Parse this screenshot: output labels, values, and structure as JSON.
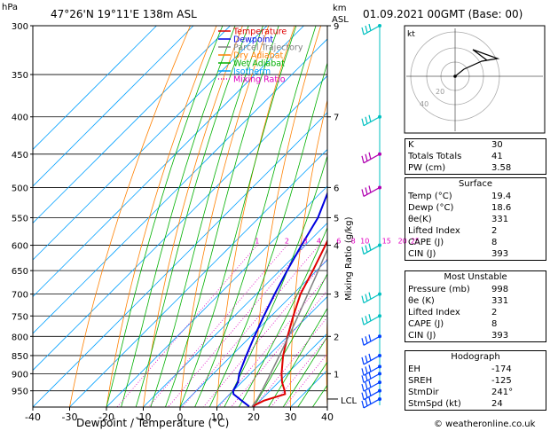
{
  "header": {
    "hpa_label": "hPa",
    "location": "47°26'N  19°11'E  138m  ASL",
    "km_label": "km",
    "asl_label": "ASL",
    "datetime": "01.09.2021  00GMT  (Base: 00)"
  },
  "legend": [
    {
      "label": "Temperature",
      "color": "#e00000",
      "style": "solid"
    },
    {
      "label": "Dewpoint",
      "color": "#0000e0",
      "style": "solid"
    },
    {
      "label": "Parcel Trajectory",
      "color": "#808080",
      "style": "solid"
    },
    {
      "label": "Dry Adiabat",
      "color": "#ff8000",
      "style": "solid"
    },
    {
      "label": "Wet Adiabat",
      "color": "#00b000",
      "style": "solid"
    },
    {
      "label": "Isotherm",
      "color": "#00a0ff",
      "style": "solid"
    },
    {
      "label": "Mixing Ratio",
      "color": "#e000c0",
      "style": "dotted"
    }
  ],
  "chart_data": {
    "type": "line",
    "title": "",
    "xlabel": "Dewpoint / Temperature (°C)",
    "ylabel": "",
    "right_axis_label": "Mixing Ratio (g/kg)",
    "xlim": [
      -40,
      40
    ],
    "x_ticks": [
      "-40",
      "-30",
      "-20",
      "-10",
      "0",
      "10",
      "20",
      "30",
      "40"
    ],
    "pressure_levels": [
      "300",
      "350",
      "400",
      "450",
      "500",
      "550",
      "600",
      "650",
      "700",
      "750",
      "800",
      "850",
      "900",
      "950"
    ],
    "km_ticks": [
      {
        "p": 300,
        "label": "9"
      },
      {
        "p": 400,
        "label": "7"
      },
      {
        "p": 500,
        "label": "6"
      },
      {
        "p": 550,
        "label": "5"
      },
      {
        "p": 600,
        "label": "4"
      },
      {
        "p": 700,
        "label": "3"
      },
      {
        "p": 800,
        "label": "2"
      },
      {
        "p": 900,
        "label": "1"
      }
    ],
    "lcl_label": "LCL",
    "lcl_pressure": 975,
    "mixing_ratio_labels": [
      "1",
      "2",
      "3",
      "4",
      "6",
      "8",
      "10",
      "15",
      "20",
      "25"
    ],
    "series": [
      {
        "name": "Temperature",
        "color": "#e00000",
        "points": [
          [
            998,
            19.4
          ],
          [
            980,
            21
          ],
          [
            960,
            25
          ],
          [
            950,
            24
          ],
          [
            925,
            21
          ],
          [
            900,
            18.5
          ],
          [
            850,
            14
          ],
          [
            800,
            10
          ],
          [
            750,
            6
          ],
          [
            700,
            2
          ],
          [
            650,
            -1
          ],
          [
            600,
            -4.5
          ],
          [
            550,
            -8.5
          ],
          [
            500,
            -13
          ],
          [
            450,
            -19
          ],
          [
            400,
            -26
          ],
          [
            350,
            -34
          ],
          [
            300,
            -43
          ]
        ]
      },
      {
        "name": "Dewpoint",
        "color": "#0000e0",
        "points": [
          [
            998,
            18.6
          ],
          [
            980,
            15
          ],
          [
            960,
            11
          ],
          [
            950,
            10
          ],
          [
            925,
            9
          ],
          [
            900,
            7
          ],
          [
            850,
            4
          ],
          [
            800,
            1
          ],
          [
            750,
            -2
          ],
          [
            700,
            -5
          ],
          [
            650,
            -8
          ],
          [
            600,
            -11
          ],
          [
            550,
            -14
          ],
          [
            500,
            -19
          ],
          [
            450,
            -24
          ],
          [
            400,
            -31
          ],
          [
            350,
            -40
          ],
          [
            300,
            -49
          ]
        ]
      },
      {
        "name": "Parcel Trajectory",
        "color": "#808080",
        "points": [
          [
            998,
            19.4
          ],
          [
            975,
            18.8
          ],
          [
            950,
            17.8
          ],
          [
            900,
            15.5
          ],
          [
            850,
            13
          ],
          [
            800,
            10.3
          ],
          [
            750,
            7.3
          ],
          [
            700,
            4
          ],
          [
            650,
            0.5
          ],
          [
            600,
            -3.5
          ],
          [
            550,
            -8
          ],
          [
            500,
            -13.5
          ],
          [
            450,
            -19.5
          ],
          [
            400,
            -26.5
          ],
          [
            350,
            -35
          ],
          [
            300,
            -45
          ]
        ]
      }
    ]
  },
  "hodograph": {
    "label": "kt",
    "ring_labels": [
      "20",
      "40"
    ]
  },
  "indices": [
    {
      "k": "K",
      "v": "30"
    },
    {
      "k": "Totals Totals",
      "v": "41"
    },
    {
      "k": "PW (cm)",
      "v": "3.58"
    }
  ],
  "surface": {
    "title": "Surface",
    "rows": [
      {
        "k": "Temp (°C)",
        "v": "19.4"
      },
      {
        "k": "Dewp (°C)",
        "v": "18.6"
      },
      {
        "k": "θe(K)",
        "v": "331"
      },
      {
        "k": "Lifted Index",
        "v": "2"
      },
      {
        "k": "CAPE (J)",
        "v": "8"
      },
      {
        "k": "CIN (J)",
        "v": "393"
      }
    ]
  },
  "most_unstable": {
    "title": "Most Unstable",
    "rows": [
      {
        "k": "Pressure (mb)",
        "v": "998"
      },
      {
        "k": "θe (K)",
        "v": "331"
      },
      {
        "k": "Lifted Index",
        "v": "2"
      },
      {
        "k": "CAPE (J)",
        "v": "8"
      },
      {
        "k": "CIN (J)",
        "v": "393"
      }
    ]
  },
  "hodo_table": {
    "title": "Hodograph",
    "rows": [
      {
        "k": "EH",
        "v": "-174"
      },
      {
        "k": "SREH",
        "v": "-125"
      },
      {
        "k": "StmDir",
        "v": "241°"
      },
      {
        "k": "StmSpd (kt)",
        "v": "24"
      }
    ]
  },
  "footer": "© weatheronline.co.uk"
}
